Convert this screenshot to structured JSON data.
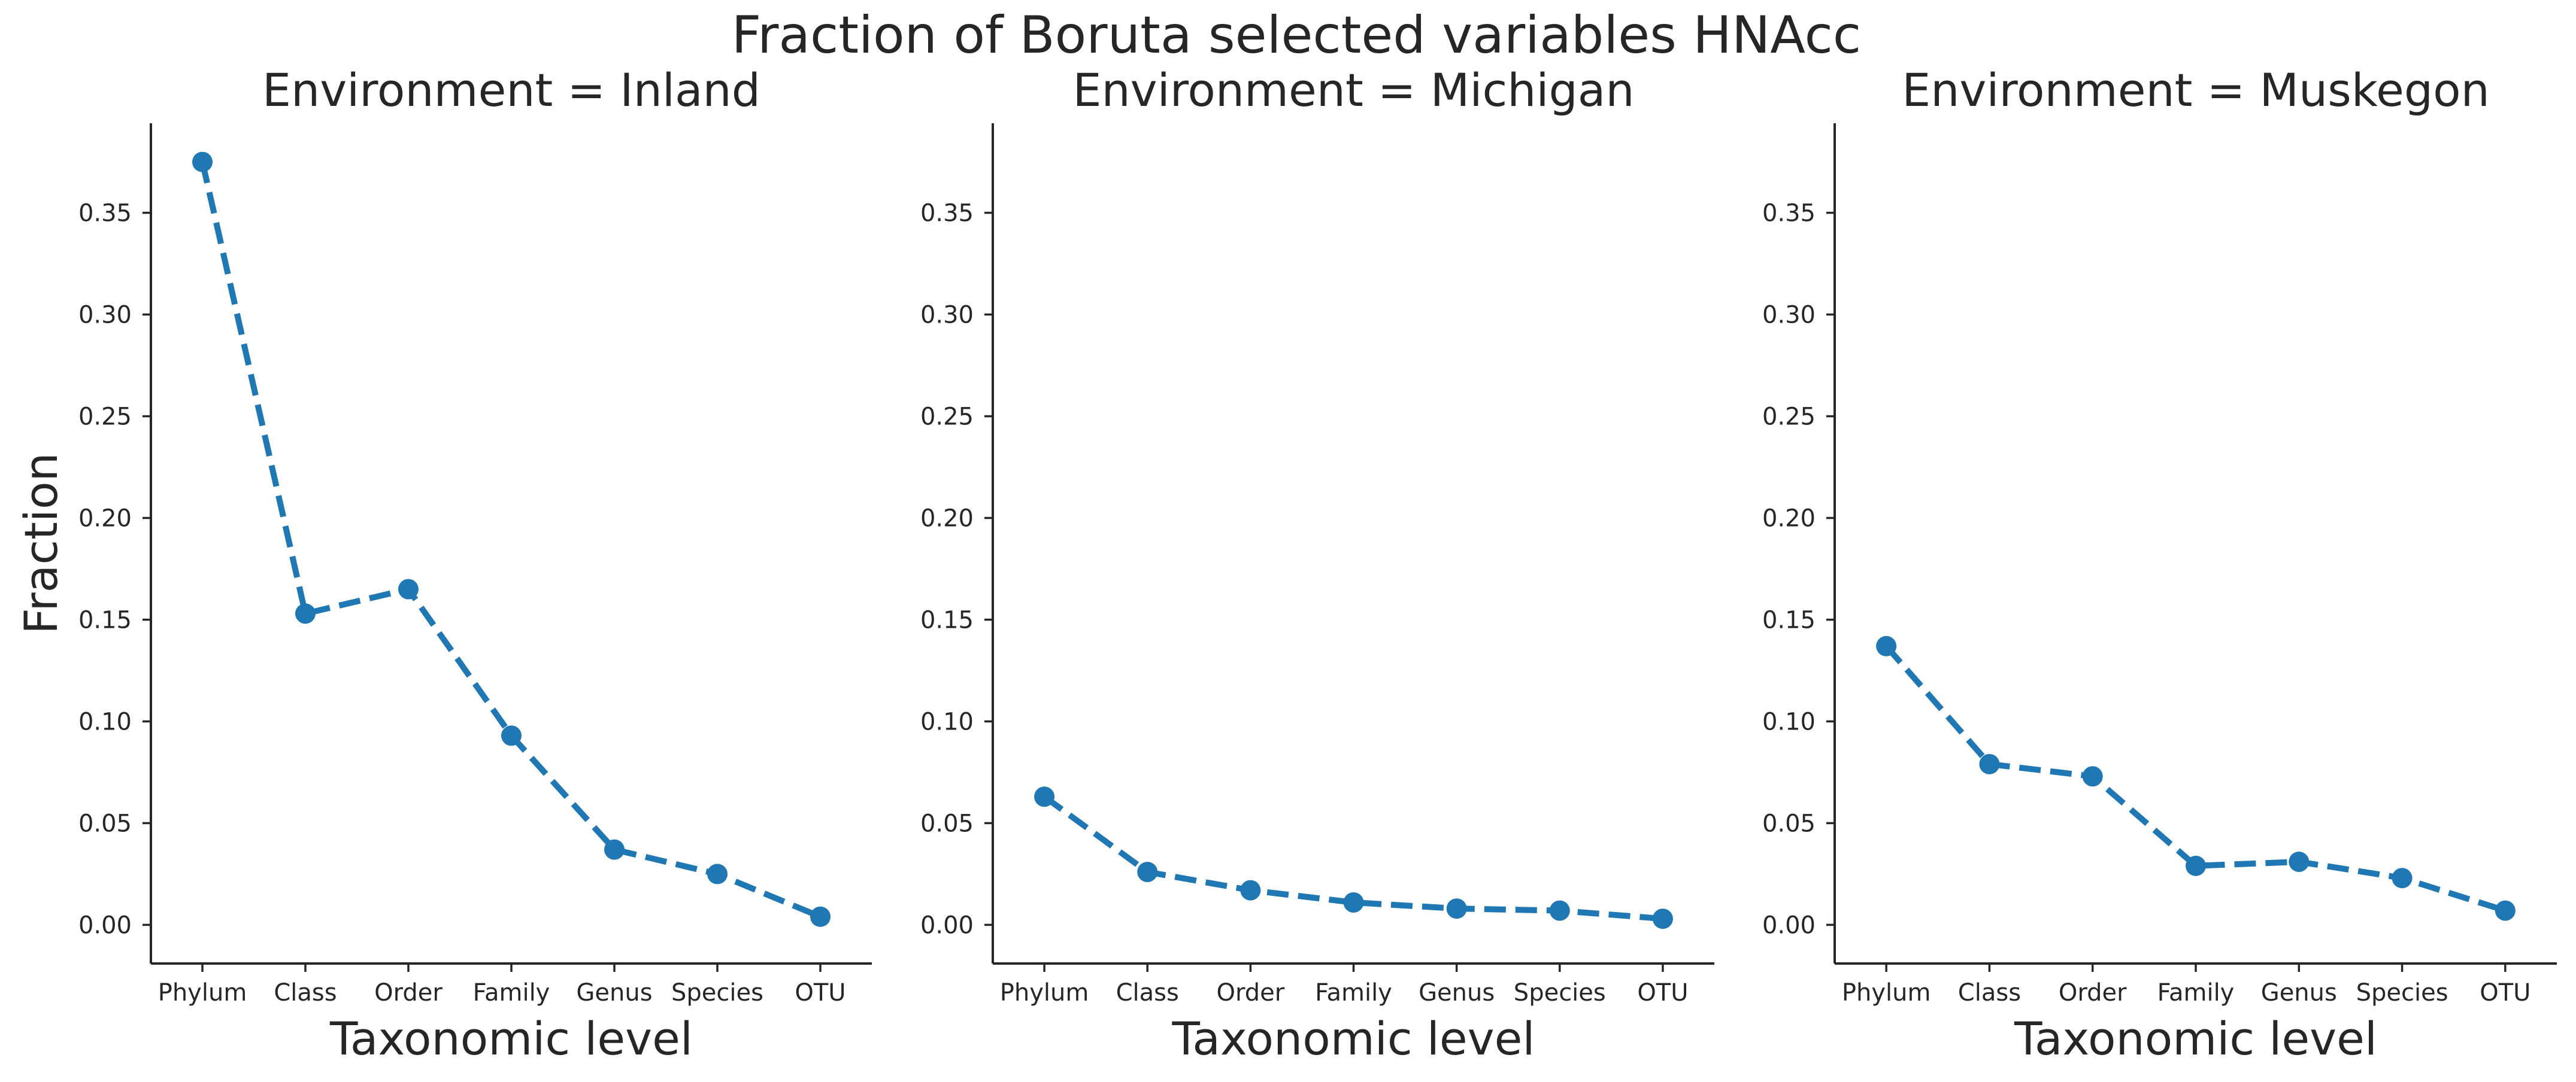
{
  "figure": {
    "suptitle": "Fraction of Boruta selected variables HNAcc"
  },
  "style": {
    "line_color": "#1f77b4",
    "axis_color": "#262626",
    "text_color": "#262626"
  },
  "chart_data": [
    {
      "type": "line",
      "title": "Environment = Inland",
      "xlabel": "Taxonomic level",
      "ylabel": "Fraction",
      "categories": [
        "Phylum",
        "Class",
        "Order",
        "Family",
        "Genus",
        "Species",
        "OTU"
      ],
      "values": [
        0.375,
        0.153,
        0.165,
        0.093,
        0.037,
        0.025,
        0.004
      ],
      "ylim": [
        -0.019,
        0.394
      ],
      "yticks": [
        "0.00",
        "0.05",
        "0.10",
        "0.15",
        "0.20",
        "0.25",
        "0.30",
        "0.35"
      ],
      "line_style": "dashed",
      "marker": "circle",
      "grid": false,
      "legend": "none"
    },
    {
      "type": "line",
      "title": "Environment = Michigan",
      "xlabel": "Taxonomic level",
      "ylabel": "",
      "categories": [
        "Phylum",
        "Class",
        "Order",
        "Family",
        "Genus",
        "Species",
        "OTU"
      ],
      "values": [
        0.063,
        0.026,
        0.017,
        0.011,
        0.008,
        0.007,
        0.003
      ],
      "ylim": [
        -0.019,
        0.394
      ],
      "yticks": [
        "0.00",
        "0.05",
        "0.10",
        "0.15",
        "0.20",
        "0.25",
        "0.30",
        "0.35"
      ],
      "line_style": "dashed",
      "marker": "circle",
      "grid": false,
      "legend": "none"
    },
    {
      "type": "line",
      "title": "Environment = Muskegon",
      "xlabel": "Taxonomic level",
      "ylabel": "",
      "categories": [
        "Phylum",
        "Class",
        "Order",
        "Family",
        "Genus",
        "Species",
        "OTU"
      ],
      "values": [
        0.137,
        0.079,
        0.073,
        0.029,
        0.031,
        0.023,
        0.007
      ],
      "ylim": [
        -0.019,
        0.394
      ],
      "yticks": [
        "0.00",
        "0.05",
        "0.10",
        "0.15",
        "0.20",
        "0.25",
        "0.30",
        "0.35"
      ],
      "line_style": "dashed",
      "marker": "circle",
      "grid": false,
      "legend": "none"
    }
  ]
}
